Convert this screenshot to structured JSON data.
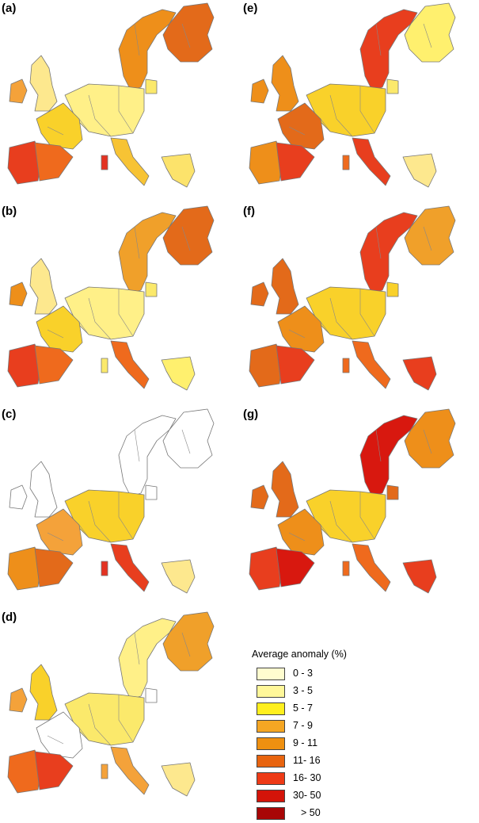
{
  "panels": [
    {
      "id": "a",
      "label": "(a)",
      "colors": {
        "scan": "#ee8f1a",
        "fin": "#e36a1a",
        "uk": "#fde88e",
        "ire": "#f4a23a",
        "fra": "#f9d12a",
        "mid": "#fff088",
        "ibe": "#e83e1e",
        "ibe2": "#ef6a1d",
        "ita": "#f7c334",
        "bal": "#fbe96b",
        "gre": "#fce36b",
        "sar": "#e33222"
      }
    },
    {
      "id": "b",
      "label": "(b)",
      "colors": {
        "scan": "#f0a02a",
        "fin": "#e36a1a",
        "uk": "#fde88e",
        "ire": "#ee8f1a",
        "fra": "#f9d12a",
        "mid": "#fff088",
        "ibe": "#e83e1e",
        "ibe2": "#ef6a1d",
        "ita": "#ef6a1d",
        "bal": "#fbe96b",
        "gre": "#fff06e",
        "sar": "#fbe96b"
      }
    },
    {
      "id": "c",
      "label": "(c)",
      "colors": {
        "scan": "none",
        "fin": "none",
        "uk": "none",
        "ire": "none",
        "fra": "#f4a23a",
        "mid": "#f9d12a",
        "ibe": "#ee8f1a",
        "ibe2": "#e36a1a",
        "ita": "#e83e1e",
        "bal": "none",
        "gre": "#fde88e",
        "sar": "#e33222"
      }
    },
    {
      "id": "d",
      "label": "(d)",
      "colors": {
        "scan": "#fff088",
        "fin": "#f0a02a",
        "uk": "#f9d12a",
        "ire": "#f4a23a",
        "fra": "none",
        "mid": "#fbe96b",
        "ibe": "#ef6a1d",
        "ibe2": "#e83e1e",
        "ita": "#f4a23a",
        "bal": "none",
        "gre": "#fde88e",
        "sar": "#f4a23a"
      }
    },
    {
      "id": "e",
      "label": "(e)",
      "colors": {
        "scan": "#e83e1e",
        "fin": "#fff06e",
        "uk": "#ee8f1a",
        "ire": "#ee8f1a",
        "fra": "#e36a1a",
        "mid": "#f9d12a",
        "ibe": "#ee8f1a",
        "ibe2": "#e83e1e",
        "ita": "#e83e1e",
        "bal": "#fbe96b",
        "gre": "#fde88e",
        "sar": "#ef6a1d"
      }
    },
    {
      "id": "f",
      "label": "(f)",
      "colors": {
        "scan": "#e83e1e",
        "fin": "#f0a02a",
        "uk": "#e36a1a",
        "ire": "#e36a1a",
        "fra": "#ee8f1a",
        "mid": "#f9d12a",
        "ibe": "#e36a1a",
        "ibe2": "#e83e1e",
        "ita": "#ef6a1d",
        "bal": "#f9d12a",
        "gre": "#e83e1e",
        "sar": "#ef6a1d"
      }
    },
    {
      "id": "g",
      "label": "(g)",
      "colors": {
        "scan": "#d8180f",
        "fin": "#ee8f1a",
        "uk": "#e36a1a",
        "ire": "#e36a1a",
        "fra": "#ee8f1a",
        "mid": "#f9d12a",
        "ibe": "#e83e1e",
        "ibe2": "#d8180f",
        "ita": "#ef6a1d",
        "bal": "#e36a1a",
        "gre": "#e83e1e",
        "sar": "#ef6a1d"
      }
    }
  ],
  "legend": {
    "title": "Average anomaly (%)",
    "items": [
      {
        "label": "0  - 3",
        "color": "#fffdcf"
      },
      {
        "label": "3  - 5",
        "color": "#fff79a"
      },
      {
        "label": "5  - 7",
        "color": "#ffef1e"
      },
      {
        "label": "7  - 9",
        "color": "#f5a623"
      },
      {
        "label": "9  - 11",
        "color": "#ef9010"
      },
      {
        "label": "11- 16",
        "color": "#e8640f"
      },
      {
        "label": "16- 30",
        "color": "#ee3a16"
      },
      {
        "label": "30- 50",
        "color": "#d41409"
      },
      {
        "label": "> 50",
        "color": "#a80606"
      }
    ]
  }
}
